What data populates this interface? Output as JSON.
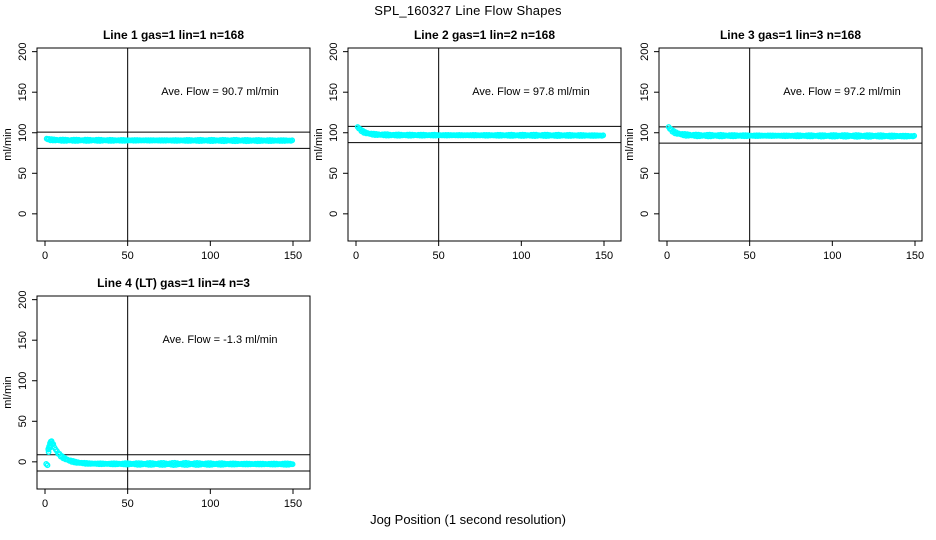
{
  "header": {
    "title": "SPL_160327  Line Flow Shapes"
  },
  "footer": {
    "xlabel": "Jog Position (1 second resolution)"
  },
  "colors": {
    "series": "#00FFFF",
    "axis": "#000000",
    "background": "#FFFFFF"
  },
  "chart_data": [
    {
      "type": "scatter",
      "title": "Line 1 gas=1 lin=1 n=168",
      "line": 1,
      "gas": 1,
      "lin": 1,
      "n": 168,
      "annotation": "Ave. Flow =  90.7  ml/min",
      "ave_flow_ml_min": 90.7,
      "ylabel": "ml/min",
      "y_ticks": [
        0,
        50,
        100,
        150,
        200
      ],
      "x_ticks": [
        0,
        50,
        100,
        150
      ],
      "ylim": [
        -33.5,
        204.5
      ],
      "xlim": [
        -5,
        160
      ],
      "ref_lines_h": [
        100.7,
        80.7
      ],
      "ref_line_v": 50,
      "grid": false,
      "legend": null,
      "marker": "open-circle",
      "band_jitter": 0.9,
      "points": [
        [
          1,
          92.5
        ],
        [
          3,
          91.5
        ],
        [
          6,
          91.0
        ],
        [
          10,
          90.8
        ],
        [
          20,
          90.7
        ],
        [
          40,
          90.6
        ],
        [
          60,
          90.6
        ],
        [
          80,
          90.5
        ],
        [
          100,
          90.5
        ],
        [
          120,
          90.4
        ],
        [
          150,
          90.3
        ]
      ],
      "extra_points": []
    },
    {
      "type": "scatter",
      "title": "Line 2 gas=1 lin=2 n=168",
      "line": 2,
      "gas": 1,
      "lin": 2,
      "n": 168,
      "annotation": "Ave. Flow =  97.8  ml/min",
      "ave_flow_ml_min": 97.8,
      "ylabel": "ml/min",
      "y_ticks": [
        0,
        50,
        100,
        150,
        200
      ],
      "x_ticks": [
        0,
        50,
        100,
        150
      ],
      "ylim": [
        -33.5,
        204.5
      ],
      "xlim": [
        -5,
        160
      ],
      "ref_lines_h": [
        107.8,
        87.8
      ],
      "ref_line_v": 50,
      "grid": false,
      "legend": null,
      "marker": "open-circle",
      "band_jitter": 0.9,
      "points": [
        [
          1,
          107.0
        ],
        [
          2,
          105.0
        ],
        [
          3,
          103.0
        ],
        [
          5,
          100.5
        ],
        [
          8,
          98.8
        ],
        [
          12,
          97.8
        ],
        [
          20,
          97.2
        ],
        [
          40,
          97.0
        ],
        [
          70,
          96.9
        ],
        [
          100,
          96.8
        ],
        [
          130,
          96.7
        ],
        [
          150,
          96.5
        ]
      ],
      "extra_points": []
    },
    {
      "type": "scatter",
      "title": "Line 3 gas=1 lin=3 n=168",
      "line": 3,
      "gas": 1,
      "lin": 3,
      "n": 168,
      "annotation": "Ave. Flow =  97.2  ml/min",
      "ave_flow_ml_min": 97.2,
      "ylabel": "ml/min",
      "y_ticks": [
        0,
        50,
        100,
        150,
        200
      ],
      "x_ticks": [
        0,
        50,
        100,
        150
      ],
      "ylim": [
        -33.5,
        204.5
      ],
      "xlim": [
        -5,
        160
      ],
      "ref_lines_h": [
        107.2,
        87.2
      ],
      "ref_line_v": 50,
      "grid": false,
      "legend": null,
      "marker": "open-circle",
      "band_jitter": 1.1,
      "points": [
        [
          1,
          107.0
        ],
        [
          2,
          104.5
        ],
        [
          3,
          102.5
        ],
        [
          5,
          100.0
        ],
        [
          8,
          98.3
        ],
        [
          12,
          97.2
        ],
        [
          20,
          96.6
        ],
        [
          40,
          96.4
        ],
        [
          70,
          96.3
        ],
        [
          100,
          96.2
        ],
        [
          130,
          96.0
        ],
        [
          150,
          95.8
        ]
      ],
      "extra_points": []
    },
    {
      "type": "scatter",
      "title": "Line 4 (LT) gas=1 lin=4 n=3",
      "line": 4,
      "line_note": "LT",
      "gas": 1,
      "lin": 4,
      "n": 3,
      "annotation": "Ave. Flow =  -1.3  ml/min",
      "ave_flow_ml_min": -1.3,
      "ylabel": "ml/min",
      "y_ticks": [
        0,
        50,
        100,
        150,
        200
      ],
      "x_ticks": [
        0,
        50,
        100,
        150
      ],
      "ylim": [
        -33.5,
        204.5
      ],
      "xlim": [
        -5,
        160
      ],
      "ref_lines_h": [
        8.7,
        -11.3
      ],
      "ref_line_v": 50,
      "grid": false,
      "legend": null,
      "marker": "open-circle",
      "band_jitter": 1.4,
      "points": [
        [
          2,
          14.0
        ],
        [
          3,
          20.0
        ],
        [
          4,
          24.0
        ],
        [
          5,
          21.0
        ],
        [
          6,
          17.0
        ],
        [
          7,
          13.5
        ],
        [
          8,
          10.5
        ],
        [
          10,
          6.5
        ],
        [
          12,
          4.0
        ],
        [
          14,
          2.2
        ],
        [
          16,
          0.8
        ],
        [
          18,
          -0.2
        ],
        [
          20,
          -1.0
        ],
        [
          25,
          -1.9
        ],
        [
          30,
          -2.3
        ],
        [
          40,
          -2.5
        ],
        [
          60,
          -2.6
        ],
        [
          80,
          -2.6
        ],
        [
          100,
          -2.7
        ],
        [
          120,
          -2.7
        ],
        [
          150,
          -2.8
        ]
      ],
      "extra_points": [
        [
          0.7,
          -2.5
        ],
        [
          1.5,
          -4.2
        ],
        [
          2.0,
          16.0
        ],
        [
          2.5,
          19.0
        ],
        [
          3.0,
          23.0
        ],
        [
          3.5,
          25.0
        ],
        [
          4.0,
          25.5
        ],
        [
          2.2,
          12.0
        ],
        [
          3.2,
          17.5
        ],
        [
          4.5,
          22.5
        ]
      ]
    }
  ]
}
